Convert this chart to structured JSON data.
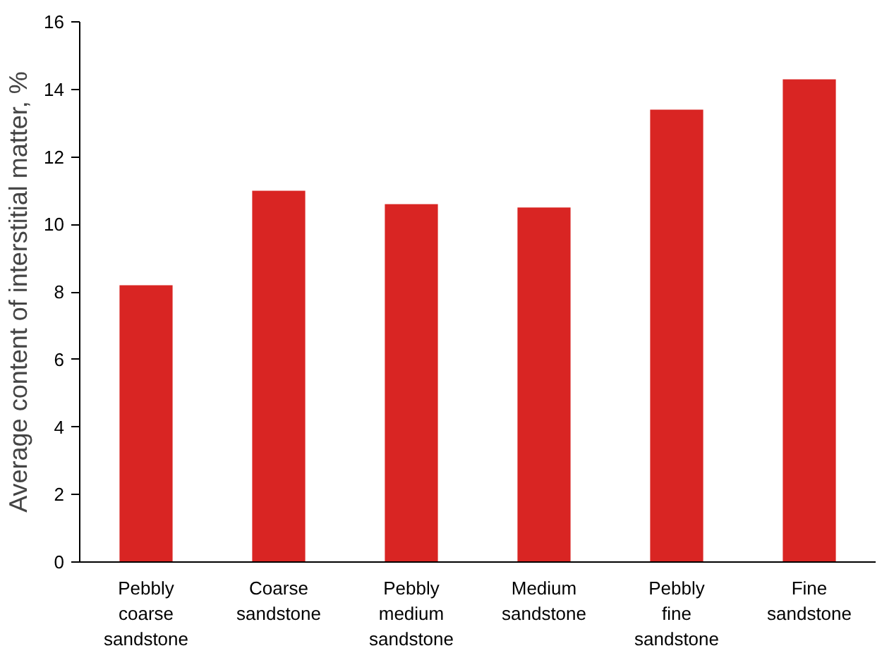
{
  "chart_data": {
    "type": "bar",
    "ylabel": "Average content of interstitial matter, %",
    "categories": [
      "Pebbly coarse sandstone",
      "Coarse sandstone",
      "Pebbly medium sandstone",
      "Medium sandstone",
      "Pebbly fine sandstone",
      "Fine sandstone"
    ],
    "values": [
      8.2,
      11.0,
      10.6,
      10.5,
      13.4,
      14.3
    ],
    "color": "#d92523",
    "ylim": [
      0,
      16
    ],
    "yticks": [
      0,
      2,
      4,
      6,
      8,
      10,
      12,
      14,
      16
    ],
    "grid": false
  }
}
